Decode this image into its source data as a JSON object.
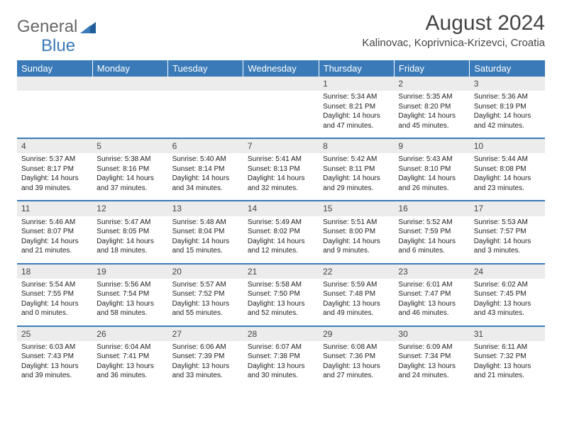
{
  "logo": {
    "text1": "General",
    "text2": "Blue"
  },
  "title": "August 2024",
  "location": "Kalinovac, Koprivnica-Krizevci, Croatia",
  "colors": {
    "header_bg": "#3a7ab8",
    "header_text": "#ffffff",
    "daynum_bg": "#ececec",
    "row_border": "#3a7ab8",
    "body_text": "#222222",
    "title_text": "#444444"
  },
  "weekdays": [
    "Sunday",
    "Monday",
    "Tuesday",
    "Wednesday",
    "Thursday",
    "Friday",
    "Saturday"
  ],
  "weeks": [
    [
      null,
      null,
      null,
      null,
      {
        "n": "1",
        "sunrise": "5:34 AM",
        "sunset": "8:21 PM",
        "daylight": "14 hours and 47 minutes."
      },
      {
        "n": "2",
        "sunrise": "5:35 AM",
        "sunset": "8:20 PM",
        "daylight": "14 hours and 45 minutes."
      },
      {
        "n": "3",
        "sunrise": "5:36 AM",
        "sunset": "8:19 PM",
        "daylight": "14 hours and 42 minutes."
      }
    ],
    [
      {
        "n": "4",
        "sunrise": "5:37 AM",
        "sunset": "8:17 PM",
        "daylight": "14 hours and 39 minutes."
      },
      {
        "n": "5",
        "sunrise": "5:38 AM",
        "sunset": "8:16 PM",
        "daylight": "14 hours and 37 minutes."
      },
      {
        "n": "6",
        "sunrise": "5:40 AM",
        "sunset": "8:14 PM",
        "daylight": "14 hours and 34 minutes."
      },
      {
        "n": "7",
        "sunrise": "5:41 AM",
        "sunset": "8:13 PM",
        "daylight": "14 hours and 32 minutes."
      },
      {
        "n": "8",
        "sunrise": "5:42 AM",
        "sunset": "8:11 PM",
        "daylight": "14 hours and 29 minutes."
      },
      {
        "n": "9",
        "sunrise": "5:43 AM",
        "sunset": "8:10 PM",
        "daylight": "14 hours and 26 minutes."
      },
      {
        "n": "10",
        "sunrise": "5:44 AM",
        "sunset": "8:08 PM",
        "daylight": "14 hours and 23 minutes."
      }
    ],
    [
      {
        "n": "11",
        "sunrise": "5:46 AM",
        "sunset": "8:07 PM",
        "daylight": "14 hours and 21 minutes."
      },
      {
        "n": "12",
        "sunrise": "5:47 AM",
        "sunset": "8:05 PM",
        "daylight": "14 hours and 18 minutes."
      },
      {
        "n": "13",
        "sunrise": "5:48 AM",
        "sunset": "8:04 PM",
        "daylight": "14 hours and 15 minutes."
      },
      {
        "n": "14",
        "sunrise": "5:49 AM",
        "sunset": "8:02 PM",
        "daylight": "14 hours and 12 minutes."
      },
      {
        "n": "15",
        "sunrise": "5:51 AM",
        "sunset": "8:00 PM",
        "daylight": "14 hours and 9 minutes."
      },
      {
        "n": "16",
        "sunrise": "5:52 AM",
        "sunset": "7:59 PM",
        "daylight": "14 hours and 6 minutes."
      },
      {
        "n": "17",
        "sunrise": "5:53 AM",
        "sunset": "7:57 PM",
        "daylight": "14 hours and 3 minutes."
      }
    ],
    [
      {
        "n": "18",
        "sunrise": "5:54 AM",
        "sunset": "7:55 PM",
        "daylight": "14 hours and 0 minutes."
      },
      {
        "n": "19",
        "sunrise": "5:56 AM",
        "sunset": "7:54 PM",
        "daylight": "13 hours and 58 minutes."
      },
      {
        "n": "20",
        "sunrise": "5:57 AM",
        "sunset": "7:52 PM",
        "daylight": "13 hours and 55 minutes."
      },
      {
        "n": "21",
        "sunrise": "5:58 AM",
        "sunset": "7:50 PM",
        "daylight": "13 hours and 52 minutes."
      },
      {
        "n": "22",
        "sunrise": "5:59 AM",
        "sunset": "7:48 PM",
        "daylight": "13 hours and 49 minutes."
      },
      {
        "n": "23",
        "sunrise": "6:01 AM",
        "sunset": "7:47 PM",
        "daylight": "13 hours and 46 minutes."
      },
      {
        "n": "24",
        "sunrise": "6:02 AM",
        "sunset": "7:45 PM",
        "daylight": "13 hours and 43 minutes."
      }
    ],
    [
      {
        "n": "25",
        "sunrise": "6:03 AM",
        "sunset": "7:43 PM",
        "daylight": "13 hours and 39 minutes."
      },
      {
        "n": "26",
        "sunrise": "6:04 AM",
        "sunset": "7:41 PM",
        "daylight": "13 hours and 36 minutes."
      },
      {
        "n": "27",
        "sunrise": "6:06 AM",
        "sunset": "7:39 PM",
        "daylight": "13 hours and 33 minutes."
      },
      {
        "n": "28",
        "sunrise": "6:07 AM",
        "sunset": "7:38 PM",
        "daylight": "13 hours and 30 minutes."
      },
      {
        "n": "29",
        "sunrise": "6:08 AM",
        "sunset": "7:36 PM",
        "daylight": "13 hours and 27 minutes."
      },
      {
        "n": "30",
        "sunrise": "6:09 AM",
        "sunset": "7:34 PM",
        "daylight": "13 hours and 24 minutes."
      },
      {
        "n": "31",
        "sunrise": "6:11 AM",
        "sunset": "7:32 PM",
        "daylight": "13 hours and 21 minutes."
      }
    ]
  ],
  "labels": {
    "sunrise": "Sunrise:",
    "sunset": "Sunset:",
    "daylight": "Daylight:"
  }
}
